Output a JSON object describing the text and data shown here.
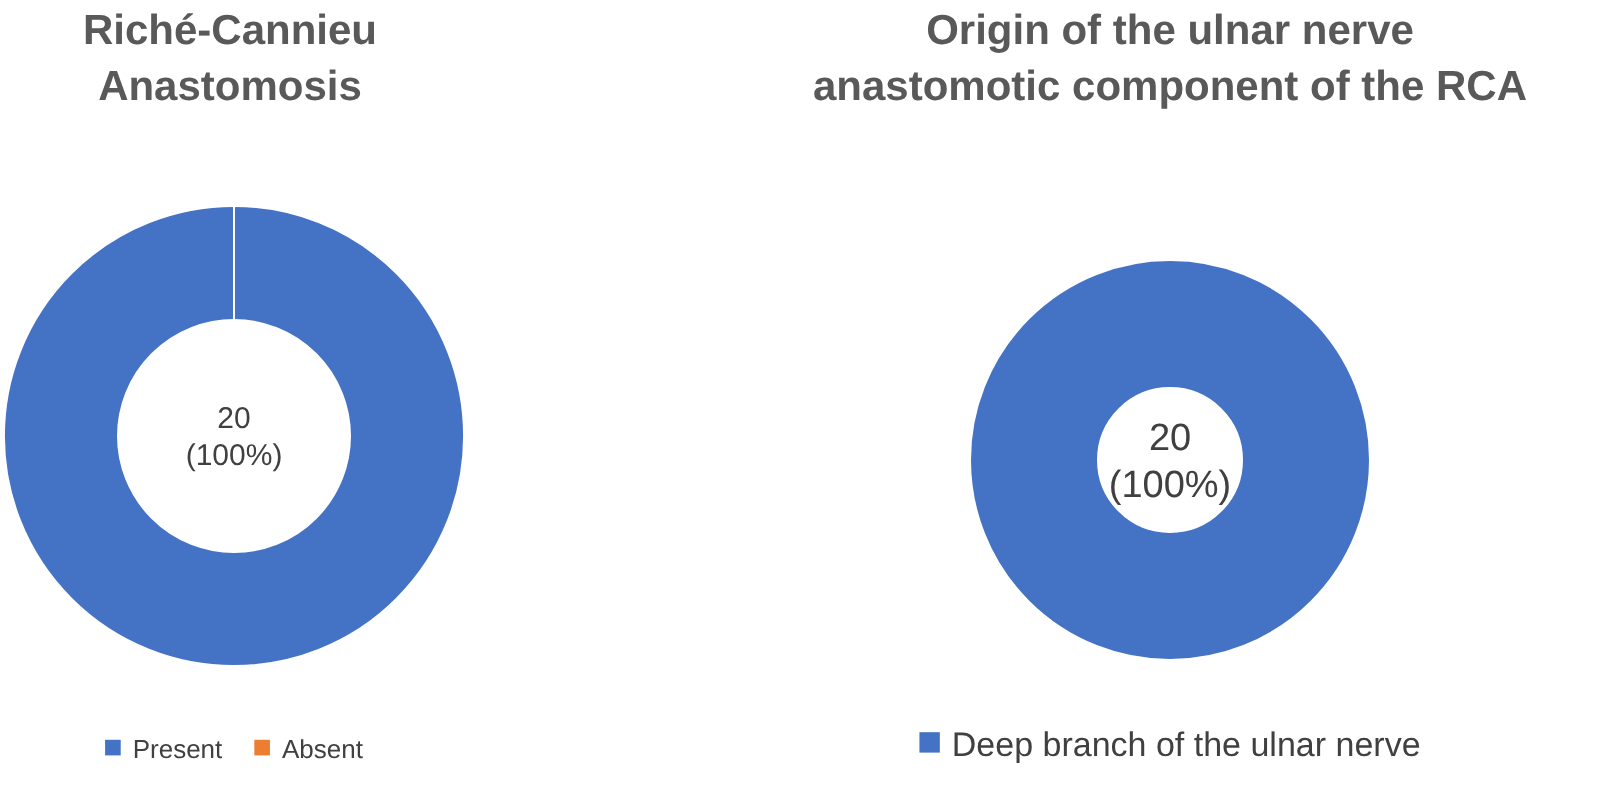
{
  "chart_data": [
    {
      "type": "donut",
      "title": "Riché-Cannieu Anastomosis",
      "categories": [
        "Present",
        "Absent"
      ],
      "values": [
        20,
        0
      ],
      "colors": [
        "#4472c4",
        "#ed7d31"
      ],
      "value_labels": [
        "20 (100%)",
        null
      ],
      "legend": "bottom"
    },
    {
      "type": "donut",
      "title": "Origin of the ulnar nerve anastomotic component of the RCA",
      "categories": [
        "Deep branch of the ulnar nerve"
      ],
      "values": [
        20
      ],
      "colors": [
        "#4472c4"
      ],
      "value_labels": [
        "20 (100%)"
      ],
      "legend": "bottom"
    }
  ]
}
